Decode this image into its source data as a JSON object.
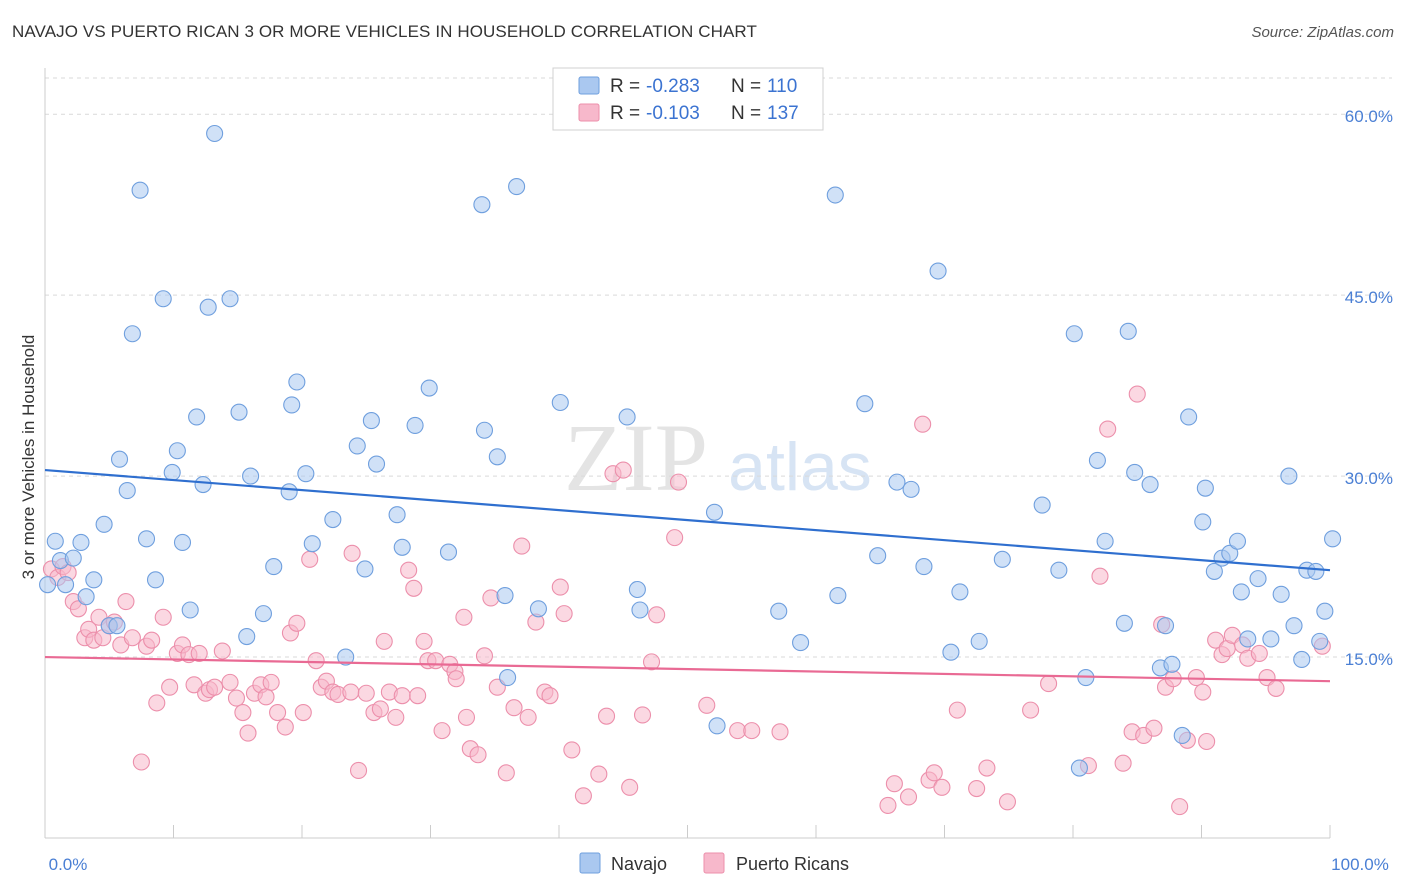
{
  "title": "NAVAJO VS PUERTO RICAN 3 OR MORE VEHICLES IN HOUSEHOLD CORRELATION CHART",
  "source": "Source: ZipAtlas.com",
  "watermark": {
    "zip": "ZIP",
    "atlas": "atlas"
  },
  "colors": {
    "navajo_fill": "#aac8f0",
    "navajo_stroke": "#6f9fde",
    "navajo_line": "#2f6fcf",
    "pr_fill": "#f7b8cb",
    "pr_stroke": "#ec8fab",
    "pr_line": "#e96a94",
    "axis_label": "#4a7fd4",
    "grid": "#d9d9d9"
  },
  "legend": {
    "rows": [
      {
        "r_label": "R =",
        "r_value": "-0.283",
        "n_label": "N =",
        "n_value": "110"
      },
      {
        "r_label": "R =",
        "r_value": "-0.103",
        "n_label": "N =",
        "n_value": "137"
      }
    ]
  },
  "bottom_legend": [
    "Navajo",
    "Puerto Ricans"
  ],
  "chart_data": {
    "type": "scatter",
    "title": "NAVAJO VS PUERTO RICAN 3 OR MORE VEHICLES IN HOUSEHOLD CORRELATION CHART",
    "xlabel": "",
    "ylabel": "3 or more Vehicles in Household",
    "xlim": [
      0,
      100
    ],
    "ylim": [
      0,
      63
    ],
    "x_tick_labels": [
      "0.0%",
      "100.0%"
    ],
    "y_ticks": [
      15,
      30,
      45,
      60
    ],
    "y_tick_labels": [
      "15.0%",
      "30.0%",
      "45.0%",
      "60.0%"
    ],
    "grid": true,
    "legend_position": "top-center",
    "series": [
      {
        "name": "Navajo",
        "R": -0.283,
        "N": 110,
        "trend": {
          "x": [
            0,
            100
          ],
          "y": [
            30.5,
            22.2
          ]
        },
        "points": [
          [
            0.2,
            21.0
          ],
          [
            0.8,
            24.6
          ],
          [
            1.2,
            23.0
          ],
          [
            1.6,
            21.0
          ],
          [
            2.2,
            23.2
          ],
          [
            2.8,
            24.5
          ],
          [
            3.2,
            20.0
          ],
          [
            3.8,
            21.4
          ],
          [
            4.6,
            26.0
          ],
          [
            5.0,
            17.6
          ],
          [
            5.6,
            17.6
          ],
          [
            5.8,
            31.4
          ],
          [
            6.4,
            28.8
          ],
          [
            6.8,
            41.8
          ],
          [
            7.4,
            53.7
          ],
          [
            7.9,
            24.8
          ],
          [
            8.6,
            21.4
          ],
          [
            9.2,
            44.7
          ],
          [
            9.9,
            30.3
          ],
          [
            10.3,
            32.1
          ],
          [
            10.7,
            24.5
          ],
          [
            11.3,
            18.9
          ],
          [
            11.8,
            34.9
          ],
          [
            12.3,
            29.3
          ],
          [
            12.7,
            44.0
          ],
          [
            13.2,
            58.4
          ],
          [
            14.4,
            44.7
          ],
          [
            15.1,
            35.3
          ],
          [
            15.7,
            16.7
          ],
          [
            16.0,
            30.0
          ],
          [
            17.0,
            18.6
          ],
          [
            17.8,
            22.5
          ],
          [
            19.0,
            28.7
          ],
          [
            19.2,
            35.9
          ],
          [
            19.6,
            37.8
          ],
          [
            20.3,
            30.2
          ],
          [
            20.8,
            24.4
          ],
          [
            22.4,
            26.4
          ],
          [
            23.4,
            15.0
          ],
          [
            24.3,
            32.5
          ],
          [
            24.9,
            22.3
          ],
          [
            25.4,
            34.6
          ],
          [
            25.8,
            31.0
          ],
          [
            27.4,
            26.8
          ],
          [
            27.8,
            24.1
          ],
          [
            28.8,
            34.2
          ],
          [
            29.9,
            37.3
          ],
          [
            31.4,
            23.7
          ],
          [
            34.0,
            52.5
          ],
          [
            34.2,
            33.8
          ],
          [
            35.2,
            31.6
          ],
          [
            35.8,
            20.1
          ],
          [
            36.0,
            13.3
          ],
          [
            36.7,
            54.0
          ],
          [
            38.4,
            19.0
          ],
          [
            40.1,
            36.1
          ],
          [
            45.3,
            34.9
          ],
          [
            46.1,
            20.6
          ],
          [
            46.3,
            18.9
          ],
          [
            52.1,
            27.0
          ],
          [
            52.3,
            9.3
          ],
          [
            57.1,
            18.8
          ],
          [
            58.8,
            16.2
          ],
          [
            61.5,
            53.3
          ],
          [
            61.7,
            20.1
          ],
          [
            63.8,
            36.0
          ],
          [
            64.8,
            23.4
          ],
          [
            66.3,
            29.5
          ],
          [
            67.4,
            28.9
          ],
          [
            68.4,
            22.5
          ],
          [
            69.5,
            47.0
          ],
          [
            70.5,
            15.4
          ],
          [
            71.2,
            20.4
          ],
          [
            72.7,
            16.3
          ],
          [
            74.5,
            23.1
          ],
          [
            77.6,
            27.6
          ],
          [
            78.9,
            22.2
          ],
          [
            80.1,
            41.8
          ],
          [
            80.5,
            5.8
          ],
          [
            81.0,
            13.3
          ],
          [
            81.9,
            31.3
          ],
          [
            82.5,
            24.6
          ],
          [
            84.0,
            17.8
          ],
          [
            84.3,
            42.0
          ],
          [
            84.8,
            30.3
          ],
          [
            86.0,
            29.3
          ],
          [
            86.8,
            14.1
          ],
          [
            87.2,
            17.6
          ],
          [
            87.7,
            14.4
          ],
          [
            88.5,
            8.5
          ],
          [
            89.0,
            34.9
          ],
          [
            90.1,
            26.2
          ],
          [
            90.3,
            29.0
          ],
          [
            91.0,
            22.1
          ],
          [
            91.6,
            23.2
          ],
          [
            92.2,
            23.6
          ],
          [
            92.8,
            24.6
          ],
          [
            93.1,
            20.4
          ],
          [
            93.6,
            16.5
          ],
          [
            94.4,
            21.5
          ],
          [
            95.4,
            16.5
          ],
          [
            96.2,
            20.2
          ],
          [
            96.8,
            30.0
          ],
          [
            97.2,
            17.6
          ],
          [
            97.8,
            14.8
          ],
          [
            98.2,
            22.2
          ],
          [
            98.9,
            22.1
          ],
          [
            99.2,
            16.3
          ],
          [
            99.6,
            18.8
          ],
          [
            100.2,
            24.8
          ]
        ]
      },
      {
        "name": "Puerto Ricans",
        "R": -0.103,
        "N": 137,
        "trend": {
          "x": [
            0,
            100
          ],
          "y": [
            15.0,
            13.0
          ]
        },
        "points": [
          [
            0.5,
            22.3
          ],
          [
            1.0,
            21.6
          ],
          [
            1.4,
            22.5
          ],
          [
            1.8,
            22.0
          ],
          [
            2.2,
            19.6
          ],
          [
            2.6,
            19.0
          ],
          [
            3.1,
            16.6
          ],
          [
            3.4,
            17.3
          ],
          [
            3.8,
            16.4
          ],
          [
            4.2,
            18.3
          ],
          [
            4.5,
            16.6
          ],
          [
            5.0,
            17.6
          ],
          [
            5.4,
            17.9
          ],
          [
            5.9,
            16.0
          ],
          [
            6.3,
            19.6
          ],
          [
            6.8,
            16.6
          ],
          [
            7.5,
            6.3
          ],
          [
            7.9,
            15.9
          ],
          [
            8.3,
            16.4
          ],
          [
            8.7,
            11.2
          ],
          [
            9.2,
            18.3
          ],
          [
            9.7,
            12.5
          ],
          [
            10.3,
            15.3
          ],
          [
            10.7,
            16.0
          ],
          [
            11.2,
            15.2
          ],
          [
            11.6,
            12.7
          ],
          [
            12.0,
            15.3
          ],
          [
            12.5,
            12.0
          ],
          [
            12.8,
            12.3
          ],
          [
            13.2,
            12.5
          ],
          [
            13.8,
            15.5
          ],
          [
            14.4,
            12.9
          ],
          [
            14.9,
            11.6
          ],
          [
            15.4,
            10.4
          ],
          [
            15.8,
            8.7
          ],
          [
            16.3,
            12.0
          ],
          [
            16.8,
            12.7
          ],
          [
            17.2,
            11.7
          ],
          [
            17.6,
            12.9
          ],
          [
            18.1,
            10.4
          ],
          [
            18.7,
            9.2
          ],
          [
            19.1,
            17.0
          ],
          [
            19.6,
            17.8
          ],
          [
            20.1,
            10.4
          ],
          [
            20.6,
            23.1
          ],
          [
            21.1,
            14.7
          ],
          [
            21.5,
            12.5
          ],
          [
            21.9,
            13.0
          ],
          [
            22.4,
            12.1
          ],
          [
            22.8,
            11.9
          ],
          [
            23.8,
            12.1
          ],
          [
            23.9,
            23.6
          ],
          [
            24.4,
            5.6
          ],
          [
            25.0,
            12.0
          ],
          [
            25.6,
            10.4
          ],
          [
            26.1,
            10.7
          ],
          [
            26.4,
            16.3
          ],
          [
            26.8,
            12.1
          ],
          [
            27.3,
            10.0
          ],
          [
            27.8,
            11.8
          ],
          [
            28.3,
            22.2
          ],
          [
            28.7,
            20.7
          ],
          [
            29.0,
            11.8
          ],
          [
            29.5,
            16.3
          ],
          [
            29.8,
            14.7
          ],
          [
            30.4,
            14.7
          ],
          [
            30.9,
            8.9
          ],
          [
            31.5,
            14.4
          ],
          [
            31.9,
            13.8
          ],
          [
            32.0,
            13.2
          ],
          [
            32.6,
            18.3
          ],
          [
            32.8,
            10.0
          ],
          [
            33.1,
            7.4
          ],
          [
            33.7,
            6.9
          ],
          [
            34.2,
            15.1
          ],
          [
            34.7,
            19.9
          ],
          [
            35.2,
            12.5
          ],
          [
            35.9,
            5.4
          ],
          [
            36.5,
            10.8
          ],
          [
            37.1,
            24.2
          ],
          [
            37.6,
            10.0
          ],
          [
            38.2,
            17.9
          ],
          [
            38.9,
            12.1
          ],
          [
            39.3,
            11.8
          ],
          [
            40.1,
            20.8
          ],
          [
            40.4,
            18.6
          ],
          [
            41.0,
            7.3
          ],
          [
            41.9,
            3.5
          ],
          [
            43.1,
            5.3
          ],
          [
            43.7,
            10.1
          ],
          [
            44.2,
            30.2
          ],
          [
            45.0,
            30.5
          ],
          [
            45.5,
            4.2
          ],
          [
            46.5,
            10.2
          ],
          [
            47.2,
            14.6
          ],
          [
            47.6,
            18.5
          ],
          [
            49.0,
            24.9
          ],
          [
            49.3,
            29.5
          ],
          [
            51.5,
            11.0
          ],
          [
            53.9,
            8.9
          ],
          [
            55.0,
            8.9
          ],
          [
            57.2,
            8.8
          ],
          [
            65.6,
            2.7
          ],
          [
            66.1,
            4.5
          ],
          [
            67.2,
            3.4
          ],
          [
            68.3,
            34.3
          ],
          [
            68.8,
            4.8
          ],
          [
            69.2,
            5.4
          ],
          [
            69.8,
            4.2
          ],
          [
            71.0,
            10.6
          ],
          [
            72.5,
            4.1
          ],
          [
            73.3,
            5.8
          ],
          [
            74.9,
            3.0
          ],
          [
            76.7,
            10.6
          ],
          [
            78.1,
            12.8
          ],
          [
            81.2,
            6.0
          ],
          [
            82.1,
            21.7
          ],
          [
            82.7,
            33.9
          ],
          [
            83.9,
            6.2
          ],
          [
            84.6,
            8.8
          ],
          [
            85.0,
            36.8
          ],
          [
            85.5,
            8.5
          ],
          [
            86.3,
            9.1
          ],
          [
            86.9,
            17.7
          ],
          [
            87.2,
            12.5
          ],
          [
            87.8,
            13.2
          ],
          [
            88.3,
            2.6
          ],
          [
            88.9,
            8.1
          ],
          [
            89.6,
            13.3
          ],
          [
            90.1,
            12.1
          ],
          [
            90.4,
            8.0
          ],
          [
            91.1,
            16.4
          ],
          [
            91.6,
            15.2
          ],
          [
            92.0,
            15.7
          ],
          [
            92.4,
            16.8
          ],
          [
            93.2,
            16.0
          ],
          [
            93.6,
            14.9
          ],
          [
            94.5,
            15.3
          ],
          [
            95.1,
            13.3
          ],
          [
            95.8,
            12.4
          ],
          [
            99.4,
            15.9
          ]
        ]
      }
    ]
  }
}
